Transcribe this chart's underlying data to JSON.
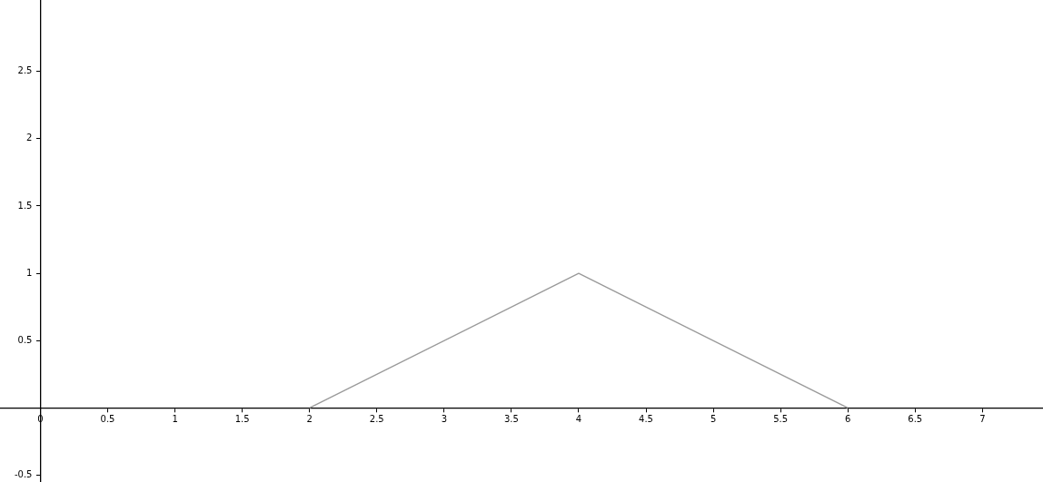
{
  "chart_data": {
    "type": "line",
    "x": [
      2,
      4,
      6
    ],
    "series": [
      {
        "color": "#999999",
        "values": [
          0,
          1,
          0
        ]
      }
    ],
    "xlim": [
      -0.3,
      7.45
    ],
    "ylim": [
      -0.55,
      3.03
    ],
    "xticks": [
      0,
      0.5,
      1,
      1.5,
      2,
      2.5,
      3,
      3.5,
      4,
      4.5,
      5,
      5.5,
      6,
      6.5,
      7
    ],
    "yticks": [
      -0.5,
      0.5,
      1,
      1.5,
      2,
      2.5
    ],
    "grid": false,
    "legend": false,
    "marker": "none",
    "line_style": "solid"
  }
}
